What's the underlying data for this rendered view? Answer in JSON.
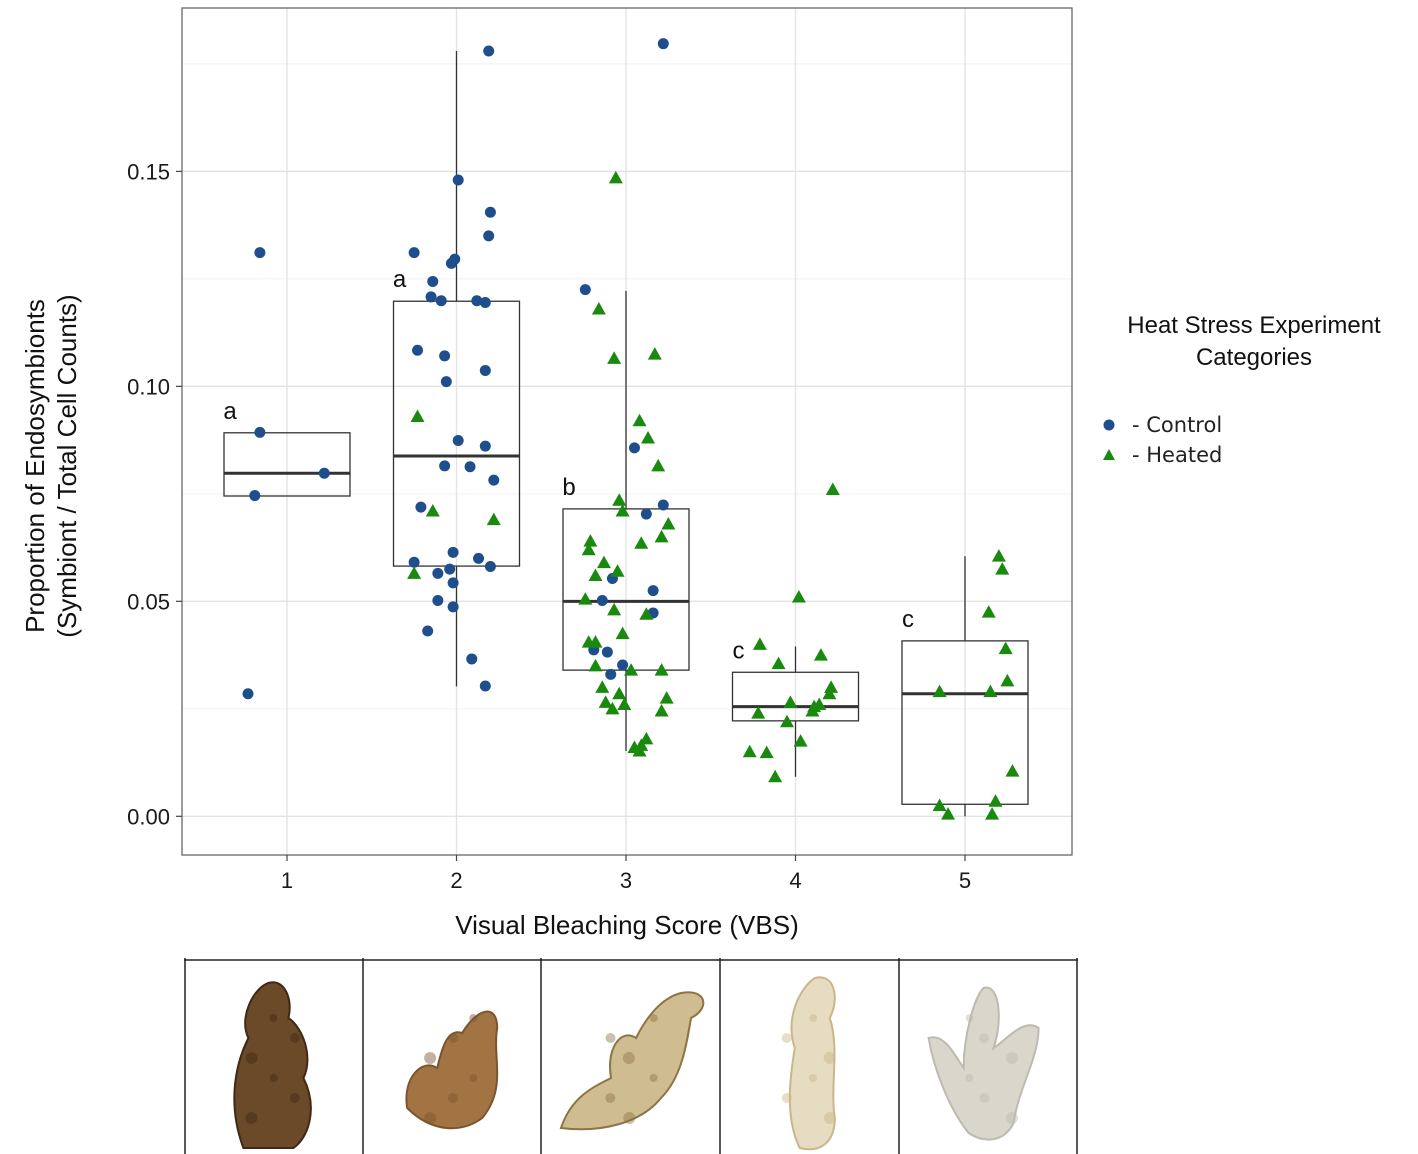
{
  "chart_data": {
    "type": "box-scatter",
    "xlabel": "Visual Bleaching Score (VBS)",
    "ylabel_lines": [
      "Proportion of Endosymbionts",
      "(Symbiont / Total Cell Counts)"
    ],
    "categories": [
      "1",
      "2",
      "3",
      "4",
      "5"
    ],
    "yticks": [
      "0.00",
      "0.05",
      "0.10",
      "0.15"
    ],
    "ylim": [
      -0.009,
      0.188
    ],
    "grid": true,
    "legend": {
      "title_lines": [
        "Heat Stress Experiment",
        "Categories"
      ],
      "placement": "right",
      "entries": [
        {
          "label": "- Control",
          "color": "#1f4e8c",
          "marker": "circle"
        },
        {
          "label": "- Heated",
          "color": "#1a8a0f",
          "marker": "triangle"
        }
      ]
    },
    "boxes": [
      {
        "category": "1",
        "min": 0.0745,
        "q1": 0.0745,
        "median": 0.0798,
        "q3": 0.0892,
        "max": 0.0892,
        "letter": "a"
      },
      {
        "category": "2",
        "min": 0.0302,
        "q1": 0.0582,
        "median": 0.0838,
        "q3": 0.1198,
        "max": 0.178,
        "letter": "a"
      },
      {
        "category": "3",
        "min": 0.0152,
        "q1": 0.034,
        "median": 0.05,
        "q3": 0.0715,
        "max": 0.1222,
        "letter": "b"
      },
      {
        "category": "4",
        "min": 0.0092,
        "q1": 0.0222,
        "median": 0.0255,
        "q3": 0.0335,
        "max": 0.0395,
        "letter": "c"
      },
      {
        "category": "5",
        "min": 0.0,
        "q1": 0.0028,
        "median": 0.0285,
        "q3": 0.0408,
        "max": 0.0605,
        "letter": "c"
      }
    ],
    "series": [
      {
        "name": "Control",
        "marker": "circle",
        "color": "#1f4e8c",
        "points": [
          [
            0.84,
            0.1311
          ],
          [
            0.84,
            0.0893
          ],
          [
            0.81,
            0.0746
          ],
          [
            1.22,
            0.0798
          ],
          [
            0.77,
            0.0285
          ],
          [
            2.19,
            0.178
          ],
          [
            2.01,
            0.148
          ],
          [
            2.2,
            0.1405
          ],
          [
            2.19,
            0.135
          ],
          [
            1.75,
            0.1311
          ],
          [
            1.99,
            0.1296
          ],
          [
            1.97,
            0.1286
          ],
          [
            1.86,
            0.1244
          ],
          [
            1.85,
            0.1208
          ],
          [
            1.91,
            0.1199
          ],
          [
            2.12,
            0.1199
          ],
          [
            2.17,
            0.1195
          ],
          [
            1.77,
            0.1084
          ],
          [
            1.93,
            0.1071
          ],
          [
            2.17,
            0.1037
          ],
          [
            1.94,
            0.1011
          ],
          [
            2.01,
            0.0874
          ],
          [
            2.17,
            0.0861
          ],
          [
            1.93,
            0.0815
          ],
          [
            2.08,
            0.0813
          ],
          [
            2.22,
            0.0782
          ],
          [
            1.79,
            0.0719
          ],
          [
            1.98,
            0.0614
          ],
          [
            1.75,
            0.0591
          ],
          [
            2.13,
            0.06
          ],
          [
            2.2,
            0.0581
          ],
          [
            1.96,
            0.0575
          ],
          [
            1.89,
            0.0565
          ],
          [
            1.98,
            0.0543
          ],
          [
            1.89,
            0.0502
          ],
          [
            1.98,
            0.0487
          ],
          [
            1.83,
            0.0431
          ],
          [
            2.09,
            0.0366
          ],
          [
            2.17,
            0.0303
          ],
          [
            3.22,
            0.1797
          ],
          [
            2.76,
            0.1225
          ],
          [
            3.05,
            0.0857
          ],
          [
            3.22,
            0.0724
          ],
          [
            3.12,
            0.0703
          ],
          [
            2.92,
            0.0553
          ],
          [
            3.16,
            0.0525
          ],
          [
            2.86,
            0.0502
          ],
          [
            3.16,
            0.0473
          ],
          [
            2.81,
            0.0387
          ],
          [
            2.89,
            0.0382
          ],
          [
            2.98,
            0.0352
          ],
          [
            2.91,
            0.033
          ]
        ]
      },
      {
        "name": "Heated",
        "marker": "triangle",
        "color": "#1a8a0f",
        "points": [
          [
            1.77,
            0.093
          ],
          [
            1.86,
            0.071
          ],
          [
            2.22,
            0.069
          ],
          [
            1.75,
            0.0565
          ],
          [
            2.94,
            0.1485
          ],
          [
            2.84,
            0.118
          ],
          [
            2.93,
            0.1065
          ],
          [
            3.17,
            0.1075
          ],
          [
            3.08,
            0.092
          ],
          [
            3.13,
            0.088
          ],
          [
            3.19,
            0.0815
          ],
          [
            2.96,
            0.0735
          ],
          [
            2.98,
            0.071
          ],
          [
            3.25,
            0.068
          ],
          [
            3.21,
            0.065
          ],
          [
            3.09,
            0.0635
          ],
          [
            2.79,
            0.064
          ],
          [
            2.78,
            0.062
          ],
          [
            2.87,
            0.059
          ],
          [
            2.95,
            0.057
          ],
          [
            2.82,
            0.056
          ],
          [
            2.76,
            0.0505
          ],
          [
            2.93,
            0.048
          ],
          [
            3.12,
            0.047
          ],
          [
            2.98,
            0.0425
          ],
          [
            2.78,
            0.0405
          ],
          [
            2.82,
            0.0405
          ],
          [
            3.21,
            0.034
          ],
          [
            2.82,
            0.035
          ],
          [
            3.03,
            0.034
          ],
          [
            2.86,
            0.03
          ],
          [
            2.96,
            0.0285
          ],
          [
            2.88,
            0.0265
          ],
          [
            2.92,
            0.025
          ],
          [
            2.99,
            0.026
          ],
          [
            3.24,
            0.0275
          ],
          [
            3.21,
            0.0245
          ],
          [
            3.12,
            0.018
          ],
          [
            3.09,
            0.0165
          ],
          [
            3.05,
            0.016
          ],
          [
            3.08,
            0.0152
          ],
          [
            4.22,
            0.076
          ],
          [
            4.02,
            0.051
          ],
          [
            3.79,
            0.04
          ],
          [
            4.15,
            0.0375
          ],
          [
            3.9,
            0.0355
          ],
          [
            4.21,
            0.03
          ],
          [
            4.2,
            0.0285
          ],
          [
            3.97,
            0.0265
          ],
          [
            4.11,
            0.0255
          ],
          [
            4.14,
            0.026
          ],
          [
            4.1,
            0.0245
          ],
          [
            3.78,
            0.024
          ],
          [
            3.95,
            0.022
          ],
          [
            4.03,
            0.0175
          ],
          [
            3.73,
            0.015
          ],
          [
            3.83,
            0.0148
          ],
          [
            3.88,
            0.0092
          ],
          [
            5.2,
            0.0605
          ],
          [
            5.22,
            0.0575
          ],
          [
            5.14,
            0.0475
          ],
          [
            5.24,
            0.039
          ],
          [
            5.25,
            0.0315
          ],
          [
            4.85,
            0.029
          ],
          [
            5.15,
            0.029
          ],
          [
            5.28,
            0.0105
          ],
          [
            5.18,
            0.0035
          ],
          [
            4.85,
            0.0025
          ],
          [
            4.9,
            0.0005
          ],
          [
            5.16,
            0.0005
          ]
        ]
      }
    ]
  },
  "photo_strip": {
    "cells": [
      {
        "vbs": "1",
        "coral_color": "#6b4a2a",
        "accent": "#3e2a16"
      },
      {
        "vbs": "2",
        "coral_color": "#a27443",
        "accent": "#7a5530"
      },
      {
        "vbs": "3",
        "coral_color": "#cfbc90",
        "accent": "#8d7444"
      },
      {
        "vbs": "4",
        "coral_color": "#e6dcc1",
        "accent": "#c9b68a"
      },
      {
        "vbs": "5",
        "coral_color": "#d9d7cc",
        "accent": "#bdbbb0"
      }
    ]
  }
}
